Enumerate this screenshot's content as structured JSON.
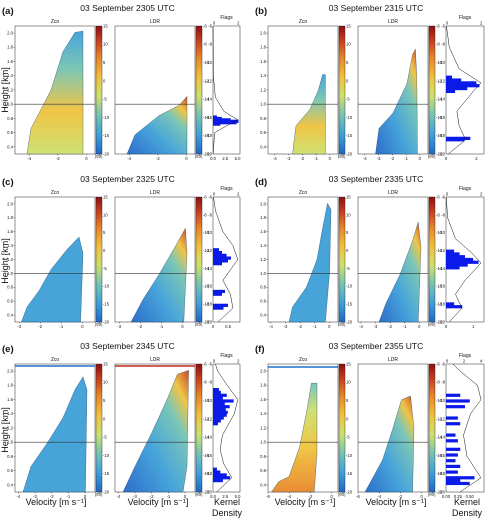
{
  "labels": {
    "zco": "Zco",
    "ldr": "LDR",
    "flags": "Flags",
    "height": "Height [km]",
    "velocity": "Velocity [m s⁻¹]",
    "kernel_line1": "Kernel",
    "kernel_line2": "Density",
    "db": "[dB]"
  },
  "colors": {
    "colormap": [
      "#2166c9",
      "#3ea0d8",
      "#74c3b4",
      "#cce06c",
      "#f0c23c",
      "#e8862a",
      "#c8401f",
      "#8e0f12"
    ],
    "flags_bar": "#0a1ae8",
    "reference_line": "#333333",
    "blue_top_line": "#1f6fc5",
    "red_top_line": "#c0281a"
  },
  "chart_data": [
    {
      "type": "heatmap",
      "panel": "(a)",
      "title": "03 September 2305 UTC",
      "ylim": [
        0.3,
        2.1
      ],
      "yticks": [
        "0.4",
        "0.6",
        "0.8",
        "1.0",
        "1.2",
        "1.4",
        "1.6",
        "1.8",
        "2.0"
      ],
      "zco": {
        "xlim": [
          -5,
          0.6
        ],
        "xticks": [
          "-4",
          "-2",
          "0"
        ],
        "colorbar": {
          "range": [
            -20,
            15
          ],
          "ticks": [
            "15",
            "10",
            "5",
            "0",
            "-5",
            "-10",
            "-15",
            "-20"
          ]
        }
      },
      "ldr": {
        "xlim": [
          -5,
          0.6
        ],
        "xticks": [
          "-4",
          "-2",
          "0"
        ],
        "colorbar": {
          "range": [
            -20,
            -6
          ],
          "ticks": [
            "-6",
            "-8",
            "-10",
            "-12",
            "-14",
            "-16",
            "-18",
            "-20"
          ]
        }
      },
      "flags": {
        "xlim": [
          0,
          5.5
        ],
        "xticks": [
          "0.0",
          "2.5",
          "5.0"
        ],
        "top_ticks": [
          "0",
          "2"
        ],
        "heights": [
          0.72,
          0.74,
          0.76,
          0.78,
          0.8,
          0.82
        ],
        "counts": [
          1.5,
          4.8,
          5.2,
          3.6,
          1.8,
          0.8
        ],
        "kde": [
          [
            0.3,
            0.02
          ],
          [
            0.6,
            0.2
          ],
          [
            0.7,
            1.8
          ],
          [
            0.78,
            3.2
          ],
          [
            0.9,
            1.4
          ],
          [
            1.1,
            0.3
          ],
          [
            1.4,
            0.05
          ],
          [
            2.1,
            0.0
          ]
        ]
      },
      "reference_height": 1.0
    },
    {
      "type": "heatmap",
      "panel": "(b)",
      "title": "03 September 2315 UTC",
      "ylim": [
        0.3,
        2.1
      ],
      "yticks": [
        "0.4",
        "0.6",
        "0.8",
        "1.0",
        "1.2",
        "1.4",
        "1.6",
        "1.8",
        "2.0"
      ],
      "zco": {
        "xlim": [
          -4.5,
          0.6
        ],
        "xticks": [
          "-4",
          "-3",
          "-2",
          "-1",
          "0"
        ],
        "colorbar": {
          "range": [
            -20,
            15
          ],
          "ticks": [
            "15",
            "10",
            "5",
            "0",
            "-5",
            "-10",
            "-15",
            "-20"
          ]
        }
      },
      "ldr": {
        "xlim": [
          -4.5,
          0.6
        ],
        "xticks": [
          "-4",
          "-3",
          "-2",
          "-1",
          "0"
        ],
        "colorbar": {
          "range": [
            -20,
            -6
          ],
          "ticks": [
            "-6",
            "-8",
            "-10",
            "-12",
            "-14",
            "-16",
            "-18",
            "-20"
          ]
        }
      },
      "flags": {
        "xlim": [
          0,
          2.5
        ],
        "xticks": [
          "0",
          "2"
        ],
        "top_ticks": [
          "0",
          "2"
        ],
        "heights": [
          0.5,
          0.52,
          1.18,
          1.22,
          1.26,
          1.3,
          1.34,
          1.38
        ],
        "counts": [
          1.2,
          1.6,
          0.6,
          1.4,
          2.2,
          2.0,
          1.0,
          0.4
        ],
        "kde": [
          [
            0.3,
            0.1
          ],
          [
            0.5,
            0.9
          ],
          [
            0.7,
            0.6
          ],
          [
            0.9,
            0.5
          ],
          [
            1.2,
            1.3
          ],
          [
            1.3,
            1.6
          ],
          [
            1.5,
            0.6
          ],
          [
            1.8,
            0.15
          ],
          [
            2.1,
            0.02
          ]
        ]
      },
      "reference_height": 1.0
    },
    {
      "type": "heatmap",
      "panel": "(c)",
      "title": "03 September 2325 UTC",
      "ylim": [
        0.3,
        2.1
      ],
      "yticks": [
        "0.4",
        "0.6",
        "0.8",
        "1.0",
        "1.2",
        "1.4",
        "1.6",
        "1.8",
        "2.0"
      ],
      "zco": {
        "xlim": [
          -3.2,
          0.6
        ],
        "xticks": [
          "-3",
          "-2",
          "-1",
          "0"
        ],
        "colorbar": {
          "range": [
            -20,
            15
          ],
          "ticks": [
            "15",
            "10",
            "5",
            "0",
            "-5",
            "-10",
            "-15",
            "-20"
          ]
        }
      },
      "ldr": {
        "xlim": [
          -3.2,
          0.6
        ],
        "xticks": [
          "-3",
          "-2",
          "-1",
          "0"
        ],
        "colorbar": {
          "range": [
            -20,
            -6
          ],
          "ticks": [
            "-6",
            "-8",
            "-10",
            "-12",
            "-14",
            "-16",
            "-18",
            "-20"
          ]
        }
      },
      "flags": {
        "xlim": [
          0,
          0.9
        ],
        "xticks": [
          "0",
          "0.5"
        ],
        "top_ticks": [
          "0",
          "2"
        ],
        "heights": [
          0.5,
          0.54,
          0.7,
          0.74,
          1.14,
          1.18,
          1.22,
          1.26,
          1.3,
          1.34
        ],
        "counts": [
          0.35,
          0.5,
          0.3,
          0.4,
          0.3,
          0.5,
          0.6,
          0.45,
          0.3,
          0.2
        ],
        "kde": [
          [
            0.3,
            0.1
          ],
          [
            0.5,
            0.4
          ],
          [
            0.7,
            0.35
          ],
          [
            0.9,
            0.2
          ],
          [
            1.2,
            0.5
          ],
          [
            1.4,
            0.4
          ],
          [
            1.6,
            0.2
          ],
          [
            1.9,
            0.05
          ],
          [
            2.1,
            0.01
          ]
        ]
      },
      "reference_height": 1.0
    },
    {
      "type": "heatmap",
      "panel": "(d)",
      "title": "03 September 2335 UTC",
      "ylim": [
        0.3,
        2.1
      ],
      "yticks": [
        "0.4",
        "0.6",
        "0.8",
        "1.0",
        "1.2",
        "1.4",
        "1.6",
        "1.8",
        "2.0"
      ],
      "zco": {
        "xlim": [
          -4.2,
          0.6
        ],
        "xticks": [
          "-4",
          "-3",
          "-2",
          "-1",
          "0"
        ],
        "colorbar": {
          "range": [
            -20,
            15
          ],
          "ticks": [
            "15",
            "10",
            "5",
            "0",
            "-5",
            "-10",
            "-15",
            "-20"
          ]
        }
      },
      "ldr": {
        "xlim": [
          -4.2,
          0.6
        ],
        "xticks": [
          "-4",
          "-3",
          "-2",
          "-1",
          "0"
        ],
        "colorbar": {
          "range": [
            -20,
            -6
          ],
          "ticks": [
            "-6",
            "-8",
            "-10",
            "-12",
            "-14",
            "-16",
            "-18",
            "-20"
          ]
        }
      },
      "flags": {
        "xlim": [
          0,
          1.4
        ],
        "xticks": [
          "0",
          "1"
        ],
        "top_ticks": [
          "0",
          "2"
        ],
        "heights": [
          0.52,
          0.56,
          1.08,
          1.12,
          1.16,
          1.2,
          1.24,
          1.28,
          1.32
        ],
        "counts": [
          0.6,
          0.3,
          0.5,
          0.8,
          1.2,
          1.0,
          0.7,
          0.5,
          0.3
        ],
        "kde": [
          [
            0.3,
            0.1
          ],
          [
            0.5,
            0.5
          ],
          [
            0.7,
            0.3
          ],
          [
            0.9,
            0.6
          ],
          [
            1.15,
            1.1
          ],
          [
            1.3,
            0.8
          ],
          [
            1.5,
            0.3
          ],
          [
            1.8,
            0.05
          ],
          [
            2.1,
            0.01
          ]
        ]
      },
      "reference_height": 1.0
    },
    {
      "type": "heatmap",
      "panel": "(e)",
      "title": "03 September 2345 UTC",
      "ylim": [
        0.3,
        2.1
      ],
      "yticks": [
        "0.4",
        "0.6",
        "0.8",
        "1.0",
        "1.2",
        "1.4",
        "1.6",
        "1.8",
        "2.0"
      ],
      "zco": {
        "xlim": [
          -4.2,
          0.6
        ],
        "xticks": [
          "-4",
          "-3",
          "-2",
          "-1",
          "0"
        ],
        "colorbar": {
          "range": [
            -20,
            15
          ],
          "ticks": [
            "15",
            "10",
            "5",
            "0",
            "-5",
            "-10",
            "-15",
            "-20"
          ]
        }
      },
      "ldr": {
        "xlim": [
          -4.2,
          0.6
        ],
        "xticks": [
          "-4",
          "-3",
          "-2",
          "-1",
          "0"
        ],
        "colorbar": {
          "range": [
            -20,
            -6
          ],
          "ticks": [
            "-6",
            "-8",
            "-10",
            "-12",
            "-14",
            "-16",
            "-18",
            "-20"
          ]
        }
      },
      "flags": {
        "xlim": [
          0,
          5.5
        ],
        "xticks": [
          "0.0",
          "2.5",
          "5.0"
        ],
        "top_ticks": [
          "0",
          "2"
        ],
        "heights": [
          0.46,
          0.5,
          0.54,
          0.58,
          0.62,
          1.26,
          1.3,
          1.34,
          1.38,
          1.42,
          1.46,
          1.5,
          1.54,
          1.58,
          1.62,
          1.66,
          1.7,
          1.74
        ],
        "counts": [
          2.0,
          3.5,
          2.8,
          1.5,
          0.8,
          1.0,
          1.6,
          2.2,
          2.8,
          3.0,
          2.6,
          3.4,
          2.4,
          4.2,
          2.0,
          2.8,
          1.6,
          1.2
        ],
        "kde": [
          [
            0.3,
            0.3
          ],
          [
            0.5,
            1.6
          ],
          [
            0.7,
            0.9
          ],
          [
            0.9,
            0.6
          ],
          [
            1.1,
            0.8
          ],
          [
            1.4,
            1.8
          ],
          [
            1.6,
            2.1
          ],
          [
            1.8,
            1.2
          ],
          [
            2.0,
            0.4
          ],
          [
            2.1,
            0.2
          ]
        ]
      },
      "reference_height": 1.0
    },
    {
      "type": "heatmap",
      "panel": "(f)",
      "title": "03 September 2355 UTC",
      "ylim": [
        0.3,
        2.1
      ],
      "yticks": [
        "0.4",
        "0.6",
        "0.8",
        "1.0",
        "1.2",
        "1.4",
        "1.6",
        "1.8",
        "2.0"
      ],
      "zco": {
        "xlim": [
          -6,
          0.6
        ],
        "xticks": [
          "-6",
          "-4",
          "-2",
          "0"
        ],
        "colorbar": {
          "range": [
            -20,
            15
          ],
          "ticks": [
            "15",
            "10",
            "5",
            "0",
            "-5",
            "-10",
            "-15",
            "-20"
          ]
        }
      },
      "ldr": {
        "xlim": [
          -6,
          0.6
        ],
        "xticks": [
          "-6",
          "-4",
          "-2",
          "0"
        ],
        "colorbar": {
          "range": [
            -20,
            -6
          ],
          "ticks": [
            "-6",
            "-8",
            "-10",
            "-12",
            "-14",
            "-16",
            "-18",
            "-20"
          ]
        }
      },
      "flags": {
        "xlim": [
          0,
          0.8
        ],
        "xticks": [
          "0.00",
          "0.25",
          "0.50"
        ],
        "top_ticks": [
          "0",
          "2",
          "4"
        ],
        "heights": [
          0.42,
          0.46,
          0.5,
          0.58,
          0.66,
          0.74,
          0.82,
          0.9,
          1.02,
          1.1,
          1.26,
          1.34,
          1.5,
          1.58,
          1.66
        ],
        "counts": [
          0.5,
          0.3,
          0.6,
          0.25,
          0.3,
          0.2,
          0.25,
          0.3,
          0.25,
          0.2,
          0.3,
          0.25,
          0.4,
          0.5,
          0.3
        ],
        "kde": [
          [
            0.3,
            0.2
          ],
          [
            0.5,
            0.5
          ],
          [
            0.8,
            0.3
          ],
          [
            1.1,
            0.25
          ],
          [
            1.4,
            0.35
          ],
          [
            1.6,
            0.5
          ],
          [
            1.8,
            0.45
          ],
          [
            2.0,
            0.2
          ],
          [
            2.1,
            0.1
          ]
        ]
      },
      "reference_height": 1.0
    }
  ]
}
